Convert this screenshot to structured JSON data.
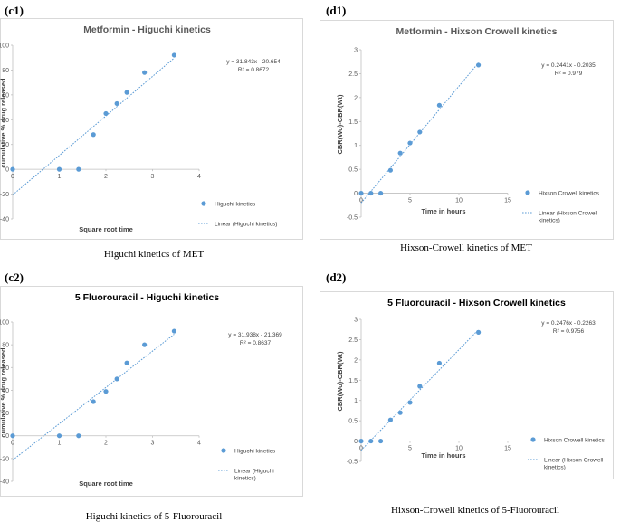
{
  "panels": [
    {
      "id": "c1",
      "label": "(c1)",
      "caption": "Higuchi kinetics of MET"
    },
    {
      "id": "d1",
      "label": "(d1)",
      "caption": "Hixson-Crowell kinetics of MET"
    },
    {
      "id": "c2",
      "label": "(c2)",
      "caption": "Higuchi kinetics of 5-Fluorouracil"
    },
    {
      "id": "d2",
      "label": "(d2)",
      "caption": "Hixson-Crowell kinetics of 5-Fluorouracil"
    }
  ],
  "chart_data": [
    {
      "id": "c1",
      "type": "scatter",
      "title": "Metformin - Higuchi kinetics",
      "xlabel": "Square root time",
      "ylabel": "cumulative % drug released",
      "xlim": [
        0,
        4
      ],
      "ylim": [
        -40,
        100
      ],
      "xticks": [
        0,
        1,
        2,
        3,
        4
      ],
      "yticks": [
        -40,
        -20,
        0,
        20,
        40,
        60,
        80,
        100
      ],
      "series": [
        {
          "name": "Higuchi kinetics",
          "color": "#5b9bd5",
          "x": [
            0,
            1,
            1.414,
            1.732,
            2,
            2.236,
            2.449,
            2.828,
            3.464
          ],
          "y": [
            0,
            0,
            0,
            28,
            45,
            53,
            62,
            78,
            92
          ]
        }
      ],
      "trendline": {
        "name": "Linear (Higuchi kinetics)",
        "slope": 31.843,
        "intercept": -20.654,
        "x_range": [
          0,
          3.464
        ]
      },
      "equation": "y = 31.843x - 20.654",
      "r2": "R² = 0.8672",
      "legend_position": "right"
    },
    {
      "id": "d1",
      "type": "scatter",
      "title": "Metformin - Hixson Crowell kinetics",
      "xlabel": "Time in hours",
      "ylabel": "CBR(Wo)-CBR(Wt)",
      "xlim": [
        0,
        15
      ],
      "ylim": [
        -0.5,
        3
      ],
      "xticks": [
        0,
        5,
        10,
        15
      ],
      "yticks": [
        -0.5,
        0,
        0.5,
        1,
        1.5,
        2,
        2.5,
        3
      ],
      "series": [
        {
          "name": "Hixson Crowell kinetics",
          "color": "#5b9bd5",
          "x": [
            0,
            1,
            2,
            3,
            4,
            5,
            6,
            8,
            12
          ],
          "y": [
            0,
            0,
            0,
            0.48,
            0.84,
            1.05,
            1.28,
            1.84,
            2.68
          ]
        }
      ],
      "trendline": {
        "name": "Linear (Hixson Crowell kinetics)",
        "slope": 0.2441,
        "intercept": -0.2035,
        "x_range": [
          0,
          12
        ]
      },
      "equation": "y = 0.2441x - 0.2035",
      "r2": "R² = 0.979",
      "legend_position": "right"
    },
    {
      "id": "c2",
      "type": "scatter",
      "title": "5 Fluorouracil - Higuchi kinetics",
      "xlabel": "Square root time",
      "ylabel": "cumulative % drug released",
      "xlim": [
        0,
        4
      ],
      "ylim": [
        -40,
        100
      ],
      "xticks": [
        0,
        1,
        2,
        3,
        4
      ],
      "yticks": [
        -40,
        -20,
        0,
        20,
        40,
        60,
        80,
        100
      ],
      "series": [
        {
          "name": "Higuchi kinetics",
          "color": "#5b9bd5",
          "x": [
            0,
            1,
            1.414,
            1.732,
            2,
            2.236,
            2.449,
            2.828,
            3.464
          ],
          "y": [
            0,
            0,
            0,
            30,
            39,
            50,
            64,
            80,
            92
          ]
        }
      ],
      "trendline": {
        "name": "Linear (Higuchi kinetics)",
        "slope": 31.938,
        "intercept": -21.369,
        "x_range": [
          0,
          3.464
        ]
      },
      "equation": "y = 31.938x - 21.369",
      "r2": "R² = 0.8637",
      "legend_position": "right"
    },
    {
      "id": "d2",
      "type": "scatter",
      "title": "5 Fluorouracil - Hixson Crowell kinetics",
      "xlabel": "Time in hours",
      "ylabel": "CBR(Wo)-CBR(Wt)",
      "xlim": [
        0,
        15
      ],
      "ylim": [
        -0.5,
        3
      ],
      "xticks": [
        0,
        5,
        10,
        15
      ],
      "yticks": [
        -0.5,
        0,
        0.5,
        1,
        1.5,
        2,
        2.5,
        3
      ],
      "series": [
        {
          "name": "Hixson Crowell kinetics",
          "color": "#5b9bd5",
          "x": [
            0,
            1,
            2,
            3,
            4,
            5,
            6,
            8,
            12
          ],
          "y": [
            0,
            0,
            0,
            0.52,
            0.7,
            0.95,
            1.35,
            1.92,
            2.68
          ]
        }
      ],
      "trendline": {
        "name": "Linear (Hixson Crowell kinetics)",
        "slope": 0.2476,
        "intercept": -0.2263,
        "x_range": [
          0,
          12
        ]
      },
      "equation": "y = 0.2476x - 0.2263",
      "r2": "R² = 0.9756",
      "legend_position": "right"
    }
  ]
}
